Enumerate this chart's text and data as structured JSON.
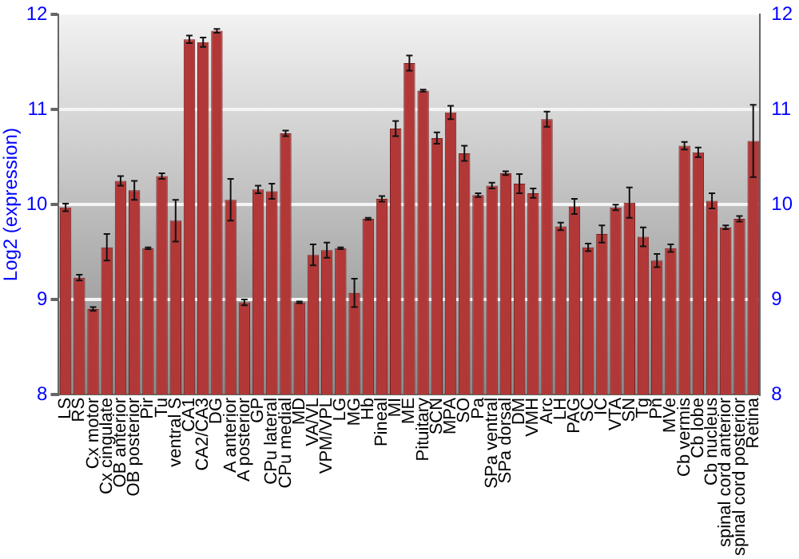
{
  "chart_data": {
    "type": "bar",
    "ylabel": "Log2 (expression)",
    "categories": [
      "LS",
      "RS",
      "Cx motor",
      "Cx cingulate",
      "OB anterior",
      "OB posterior",
      "Pir",
      "Tu",
      "ventral S",
      "CA1",
      "CA2/CA3",
      "DG",
      "A anterior",
      "A posterior",
      "GP",
      "CPu lateral",
      "CPu medial",
      "MD",
      "VA/VL",
      "VPM/VPL",
      "LG",
      "MG",
      "Hb",
      "Pineal",
      "MI",
      "ME",
      "Pituitary",
      "SCN",
      "MPA",
      "SO",
      "Pa",
      "SPa ventral",
      "SPa dorsal",
      "DM",
      "VMH",
      "Arc",
      "LH",
      "PAG",
      "SC",
      "IC",
      "VTA",
      "SN",
      "Tg",
      "Pn",
      "MVe",
      "Cb vermis",
      "Cb lobe",
      "Cb nucleus",
      "spinal cord anterior",
      "spinal cord posterior",
      "Retina"
    ],
    "values": [
      9.97,
      9.23,
      8.9,
      9.55,
      10.25,
      10.15,
      9.54,
      10.3,
      9.83,
      11.74,
      11.71,
      11.83,
      10.05,
      8.97,
      10.16,
      10.14,
      10.75,
      8.97,
      9.47,
      9.52,
      9.54,
      9.07,
      9.85,
      10.06,
      10.8,
      11.49,
      11.2,
      10.7,
      10.97,
      10.54,
      10.1,
      10.2,
      10.33,
      10.22,
      10.12,
      10.9,
      9.77,
      9.98,
      9.55,
      9.69,
      9.97,
      10.02,
      9.66,
      9.41,
      9.54,
      10.62,
      10.55,
      10.04,
      9.76,
      9.85,
      10.67
    ],
    "errors": [
      0.04,
      0.03,
      0.02,
      0.14,
      0.05,
      0.1,
      0.01,
      0.03,
      0.22,
      0.04,
      0.05,
      0.02,
      0.22,
      0.03,
      0.04,
      0.08,
      0.03,
      0.01,
      0.11,
      0.08,
      0.01,
      0.15,
      0.01,
      0.03,
      0.08,
      0.08,
      0.01,
      0.06,
      0.07,
      0.08,
      0.02,
      0.03,
      0.02,
      0.1,
      0.05,
      0.08,
      0.04,
      0.08,
      0.04,
      0.09,
      0.03,
      0.16,
      0.1,
      0.07,
      0.04,
      0.04,
      0.05,
      0.08,
      0.02,
      0.03,
      0.38
    ],
    "color": "#b23838",
    "ylim": [
      8,
      12
    ],
    "yticks": [
      8,
      9,
      10,
      11,
      12
    ],
    "y2lim": [
      8,
      12
    ],
    "y2ticks": [
      8,
      9,
      10,
      11,
      12
    ],
    "grid": "y"
  }
}
